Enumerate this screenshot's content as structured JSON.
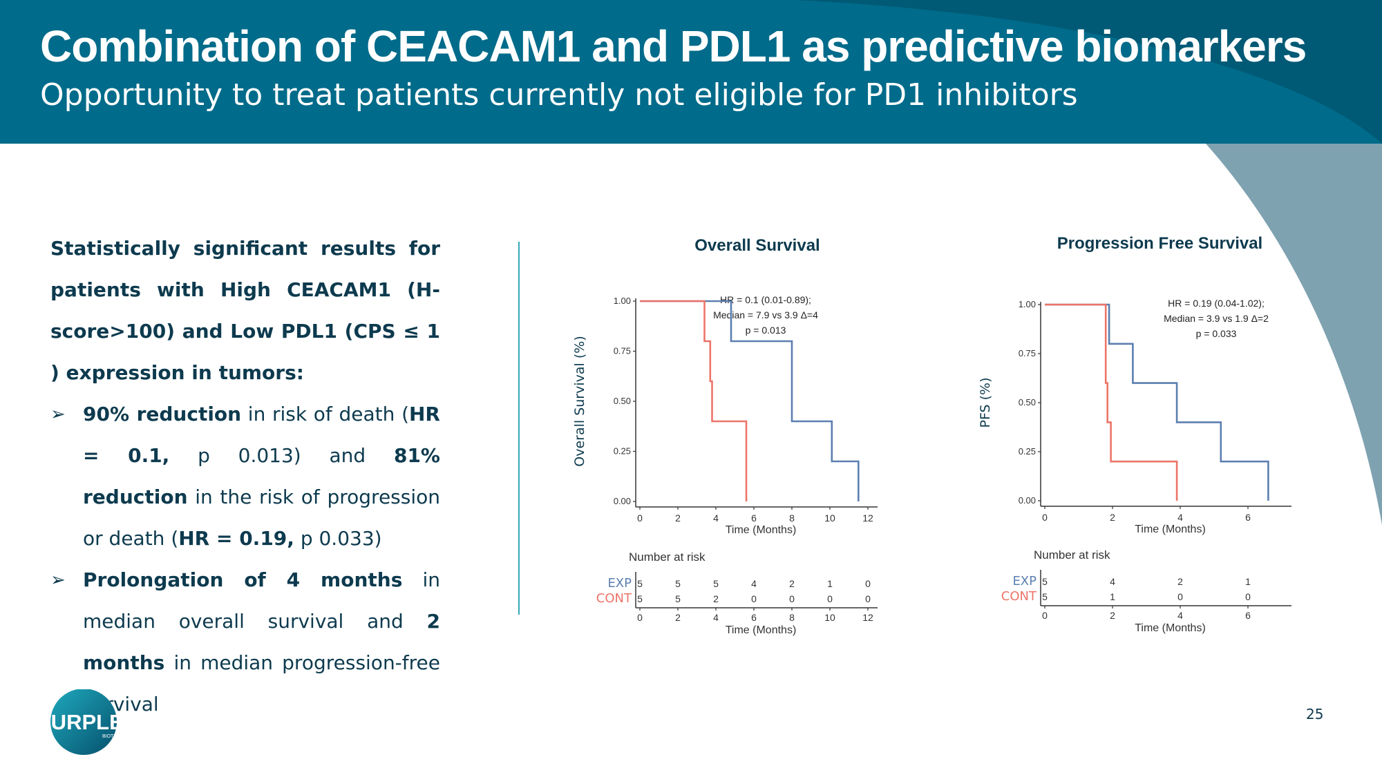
{
  "header": {
    "title": "Combination of CEACAM1 and PDL1 as predictive biomarkers",
    "subtitle": "Opportunity to treat patients currently not eligible for PD1 inhibitors"
  },
  "body": {
    "intro_1": "Statistically significant results for patients with High CEACAM1 (H-score>100) and Low PDL1 (CPS ≤ 1 ) expression in tumors:",
    "bullet1": {
      "b1": "90% reduction",
      "t1": " in risk of death (",
      "b2": "HR = 0.1,",
      "t2": " p 0.013) and ",
      "b3": "81% reduction",
      "t3": " in the risk of progression or death (",
      "b4": "HR = 0.19,",
      "t4": " p 0.033)"
    },
    "bullet2": {
      "b1": "Prolongation of 4 months",
      "t1": " in median overall survival and ",
      "b2": "2 months",
      "t2": " in median progression-free survival"
    },
    "bullet_arrow": "➢"
  },
  "footer": {
    "page_number": "25",
    "logo_text": "PURPLE",
    "logo_subtext": "BIOTECH"
  },
  "colors": {
    "header": "#006b8a",
    "exp_line": "#5b7fb0",
    "cont_line": "#ec7468",
    "text": "#0d3a4e",
    "accent_line": "#35a9b7"
  },
  "chart_data": [
    {
      "type": "line",
      "step": true,
      "title": "Overall Survival",
      "ylabel": "Overall Survival (%)",
      "xlabel": "Time (Months)",
      "xlim": [
        0,
        12
      ],
      "ylim": [
        0,
        1
      ],
      "xticks": [
        0,
        2,
        4,
        6,
        8,
        10,
        12
      ],
      "yticks": [
        "0.00",
        "0.25",
        "0.50",
        "0.75",
        "1.00"
      ],
      "annotation": [
        "HR = 0.1 (0.01-0.89);",
        "Median = 7.9 vs 3.9 Δ=4",
        "p = 0.013"
      ],
      "series": [
        {
          "name": "EXP",
          "x": [
            0,
            4.8,
            4.8,
            8,
            8,
            10.1,
            10.1,
            11.5,
            11.5
          ],
          "y": [
            1,
            1,
            0.8,
            0.8,
            0.4,
            0.4,
            0.2,
            0.2,
            0
          ]
        },
        {
          "name": "CONT",
          "x": [
            0,
            3.4,
            3.4,
            3.7,
            3.7,
            3.8,
            3.8,
            5.6,
            5.6
          ],
          "y": [
            1,
            1,
            0.8,
            0.8,
            0.6,
            0.6,
            0.4,
            0.4,
            0
          ]
        }
      ],
      "risk_table": {
        "title": "Number at risk",
        "xlabel": "Time (Months)",
        "times": [
          0,
          2,
          4,
          6,
          8,
          10,
          12
        ],
        "rows": [
          {
            "label": "EXP",
            "values": [
              "5",
              "5",
              "5",
              "4",
              "2",
              "1",
              "0"
            ]
          },
          {
            "label": "CONT",
            "values": [
              "5",
              "5",
              "2",
              "0",
              "0",
              "0",
              "0"
            ]
          }
        ]
      }
    },
    {
      "type": "line",
      "step": true,
      "title": "Progression Free Survival",
      "ylabel": "PFS (%)",
      "xlabel": "Time (Months)",
      "xlim": [
        0,
        7
      ],
      "ylim": [
        0,
        1
      ],
      "xticks": [
        0,
        2,
        4,
        6
      ],
      "yticks": [
        "0.00",
        "0.25",
        "0.50",
        "0.75",
        "1.00"
      ],
      "annotation": [
        "HR = 0.19 (0.04-1.02);",
        "Median = 3.9 vs 1.9 Δ=2",
        "p = 0.033"
      ],
      "series": [
        {
          "name": "EXP",
          "x": [
            0,
            1.9,
            1.9,
            2.6,
            2.6,
            3.9,
            3.9,
            5.2,
            5.2,
            6.6,
            6.6
          ],
          "y": [
            1,
            1,
            0.8,
            0.8,
            0.6,
            0.6,
            0.4,
            0.4,
            0.2,
            0.2,
            0
          ]
        },
        {
          "name": "CONT",
          "x": [
            0,
            1.8,
            1.8,
            1.85,
            1.85,
            1.95,
            1.95,
            3.9,
            3.9
          ],
          "y": [
            1,
            1,
            0.6,
            0.6,
            0.4,
            0.4,
            0.2,
            0.2,
            0
          ]
        }
      ],
      "risk_table": {
        "title": "Number at risk",
        "xlabel": "Time (Months)",
        "times": [
          0,
          2,
          4,
          6
        ],
        "rows": [
          {
            "label": "EXP",
            "values": [
              "5",
              "4",
              "2",
              "1"
            ]
          },
          {
            "label": "CONT",
            "values": [
              "5",
              "1",
              "0",
              "0"
            ]
          }
        ]
      }
    }
  ]
}
